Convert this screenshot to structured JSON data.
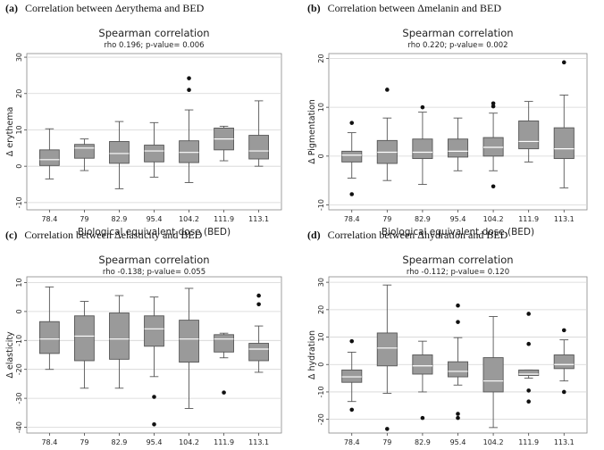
{
  "chart_data": [
    {
      "type": "box",
      "panel_label": "(a)",
      "panel_title": "Correlation between Δerythema and BED",
      "title": "Spearman correlation",
      "subtitle": "rho 0.196; p-value= 0.006",
      "xlabel": "Biological equivalent dose (BED)",
      "ylabel": "Δ erythema",
      "ylim": [
        -12,
        31
      ],
      "yticks": [
        -10,
        0,
        10,
        20,
        30
      ],
      "categories": [
        "78.4",
        "79",
        "82.9",
        "95.4",
        "104.2",
        "111.9",
        "113.1"
      ],
      "boxes": [
        {
          "min": -3.5,
          "q1": 0.2,
          "median": 1.8,
          "q3": 4.5,
          "max": 10.3,
          "outliers": []
        },
        {
          "min": -1.2,
          "q1": 2.2,
          "median": 5.0,
          "q3": 6.0,
          "max": 7.5,
          "outliers": []
        },
        {
          "min": -6.2,
          "q1": 0.8,
          "median": 3.5,
          "q3": 6.8,
          "max": 12.3,
          "outliers": []
        },
        {
          "min": -3.0,
          "q1": 1.2,
          "median": 4.2,
          "q3": 5.8,
          "max": 12.0,
          "outliers": []
        },
        {
          "min": -4.5,
          "q1": 1.0,
          "median": 3.8,
          "q3": 7.0,
          "max": 15.5,
          "outliers": [
            21.0,
            24.2
          ]
        },
        {
          "min": 1.5,
          "q1": 4.5,
          "median": 7.5,
          "q3": 10.5,
          "max": 11.0,
          "outliers": []
        },
        {
          "min": 0.0,
          "q1": 2.0,
          "median": 4.2,
          "q3": 8.5,
          "max": 18.0,
          "outliers": []
        }
      ]
    },
    {
      "type": "box",
      "panel_label": "(b)",
      "panel_title": "Correlation between Δmelanin and BED",
      "title": "Spearman correlation",
      "subtitle": "rho 0.220; p-value= 0.002",
      "xlabel": "Biological equivalent dose (BED)",
      "ylabel": "Δ Pigmentation",
      "ylim": [
        -11,
        21
      ],
      "yticks": [
        -10,
        0,
        10,
        20
      ],
      "categories": [
        "78.4",
        "79",
        "82.9",
        "95.4",
        "104.2",
        "111.9",
        "113.1"
      ],
      "boxes": [
        {
          "min": -4.5,
          "q1": -1.2,
          "median": 0.2,
          "q3": 1.0,
          "max": 4.8,
          "outliers": [
            6.8,
            -7.8
          ]
        },
        {
          "min": -5.0,
          "q1": -1.5,
          "median": 0.8,
          "q3": 3.2,
          "max": 7.8,
          "outliers": [
            13.6
          ]
        },
        {
          "min": -5.8,
          "q1": -0.5,
          "median": 0.8,
          "q3": 3.5,
          "max": 9.0,
          "outliers": [
            10.0
          ]
        },
        {
          "min": -3.0,
          "q1": -0.2,
          "median": 1.0,
          "q3": 3.5,
          "max": 7.8,
          "outliers": []
        },
        {
          "min": -3.0,
          "q1": 0.0,
          "median": 1.8,
          "q3": 3.8,
          "max": 8.8,
          "outliers": [
            10.2,
            10.8,
            -6.2
          ]
        },
        {
          "min": -1.2,
          "q1": 1.5,
          "median": 3.0,
          "q3": 7.2,
          "max": 11.2,
          "outliers": []
        },
        {
          "min": -6.5,
          "q1": -0.5,
          "median": 1.5,
          "q3": 5.8,
          "max": 12.5,
          "outliers": [
            19.2
          ]
        }
      ]
    },
    {
      "type": "box",
      "panel_label": "(c)",
      "panel_title": "Correlation between Δelasticity and BED",
      "title": "Spearman correlation",
      "subtitle": "rho -0.138; p-value= 0.055",
      "xlabel": "Biological equivalent dose (BED)",
      "ylabel": "Δ elasticity",
      "ylim": [
        -42,
        12
      ],
      "yticks": [
        -40,
        -30,
        -20,
        -10,
        0,
        10
      ],
      "categories": [
        "78.4",
        "79",
        "82.9",
        "95.4",
        "104.2",
        "111.9",
        "113.1"
      ],
      "boxes": [
        {
          "min": -20.0,
          "q1": -14.5,
          "median": -9.5,
          "q3": -3.5,
          "max": 8.5,
          "outliers": []
        },
        {
          "min": -26.5,
          "q1": -17.0,
          "median": -8.5,
          "q3": -1.5,
          "max": 3.5,
          "outliers": []
        },
        {
          "min": -26.5,
          "q1": -16.5,
          "median": -9.5,
          "q3": -0.5,
          "max": 5.5,
          "outliers": []
        },
        {
          "min": -22.5,
          "q1": -12.0,
          "median": -6.0,
          "q3": -1.5,
          "max": 5.0,
          "outliers": [
            -29.5,
            -39.0
          ]
        },
        {
          "min": -33.5,
          "q1": -17.5,
          "median": -9.5,
          "q3": -3.0,
          "max": 8.0,
          "outliers": []
        },
        {
          "min": -16.0,
          "q1": -14.0,
          "median": -9.5,
          "q3": -8.0,
          "max": -7.5,
          "outliers": [
            -28.0
          ]
        },
        {
          "min": -21.0,
          "q1": -17.0,
          "median": -13.0,
          "q3": -11.0,
          "max": -5.0,
          "outliers": [
            5.5,
            2.5
          ]
        }
      ]
    },
    {
      "type": "box",
      "panel_label": "(d)",
      "panel_title": "Correlation between Δhydration and BED",
      "title": "Spearman correlation",
      "subtitle": "rho -0.112; p-value= 0.120",
      "xlabel": "Biological equivalent dose (BED)",
      "ylabel": "Δ hydration",
      "ylim": [
        -25,
        32
      ],
      "yticks": [
        -20,
        -10,
        0,
        10,
        20,
        30
      ],
      "categories": [
        "78.4",
        "79",
        "82.9",
        "95.4",
        "104.2",
        "111.9",
        "113.1"
      ],
      "boxes": [
        {
          "min": -13.5,
          "q1": -6.5,
          "median": -4.5,
          "q3": -2.0,
          "max": 4.5,
          "outliers": [
            8.5,
            -16.5
          ]
        },
        {
          "min": -10.5,
          "q1": -0.5,
          "median": 6.0,
          "q3": 11.5,
          "max": 29.0,
          "outliers": [
            -23.5
          ]
        },
        {
          "min": -10.0,
          "q1": -3.5,
          "median": -0.5,
          "q3": 3.5,
          "max": 8.5,
          "outliers": [
            -19.5
          ]
        },
        {
          "min": -7.5,
          "q1": -4.5,
          "median": -2.5,
          "q3": 1.0,
          "max": 9.8,
          "outliers": [
            21.5,
            15.5,
            -18.0,
            -19.5
          ]
        },
        {
          "min": -23.0,
          "q1": -10.0,
          "median": -6.0,
          "q3": 2.5,
          "max": 17.5,
          "outliers": []
        },
        {
          "min": -5.0,
          "q1": -4.0,
          "median": -3.5,
          "q3": -2.0,
          "max": -2.0,
          "outliers": [
            18.5,
            7.5,
            -9.5,
            -13.5
          ]
        },
        {
          "min": -6.0,
          "q1": -1.5,
          "median": 0.0,
          "q3": 3.5,
          "max": 9.0,
          "outliers": [
            12.5,
            -10.0
          ]
        }
      ]
    }
  ]
}
